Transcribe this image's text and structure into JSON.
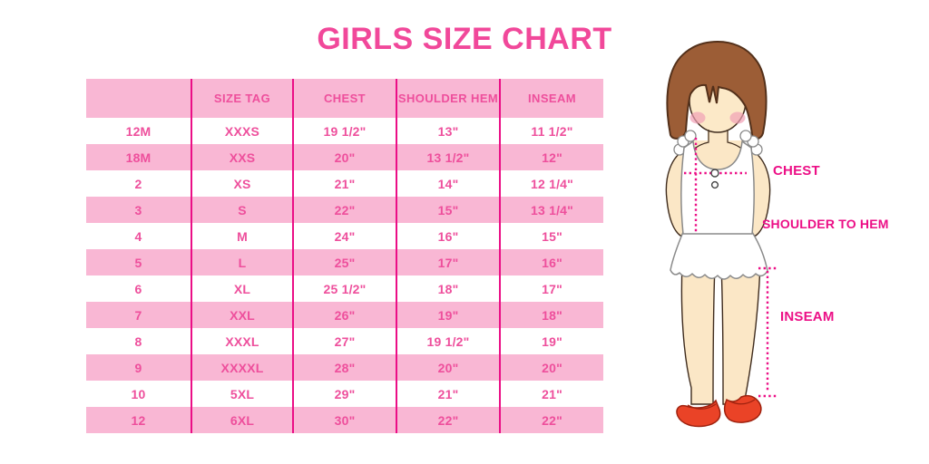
{
  "title": "GIRLS SIZE CHART",
  "chart_data": {
    "type": "table",
    "title": "GIRLS SIZE CHART",
    "columns": [
      "",
      "SIZE TAG",
      "CHEST",
      "SHOULDER HEM",
      "INSEAM"
    ],
    "rows": [
      [
        "12M",
        "XXXS",
        "19 1/2\"",
        "13\"",
        "11 1/2\""
      ],
      [
        "18M",
        "XXS",
        "20\"",
        "13 1/2\"",
        "12\""
      ],
      [
        "2",
        "XS",
        "21\"",
        "14\"",
        "12 1/4\""
      ],
      [
        "3",
        "S",
        "22\"",
        "15\"",
        "13 1/4\""
      ],
      [
        "4",
        "M",
        "24\"",
        "16\"",
        "15\""
      ],
      [
        "5",
        "L",
        "25\"",
        "17\"",
        "16\""
      ],
      [
        "6",
        "XL",
        "25 1/2\"",
        "18\"",
        "17\""
      ],
      [
        "7",
        "XXL",
        "26\"",
        "19\"",
        "18\""
      ],
      [
        "8",
        "XXXL",
        "27\"",
        "19 1/2\"",
        "19\""
      ],
      [
        "9",
        "XXXXL",
        "28\"",
        "20\"",
        "20\""
      ],
      [
        "10",
        "5XL",
        "29\"",
        "21\"",
        "21\""
      ],
      [
        "12",
        "6XL",
        "30\"",
        "22\"",
        "22\""
      ]
    ],
    "row_stripe": "alternating white and pink, first data row white",
    "legend_position": "none"
  },
  "figure": {
    "labels": {
      "chest": "CHEST",
      "shoulder_to_hem": "SHOULDER TO HEM",
      "inseam": "INSEAM"
    },
    "illustration": "girl-with-brown-bob-white-dress-red-shoes"
  },
  "colors": {
    "title_text": "#f1489a",
    "cell_text": "#ee4f9c",
    "row_pink": "#f9b7d4",
    "divider": "#eb0e86",
    "measure_line": "#ec0f86",
    "hair": "#9c5d36",
    "skin": "#fbe7c6",
    "shoe": "#ea4327"
  }
}
